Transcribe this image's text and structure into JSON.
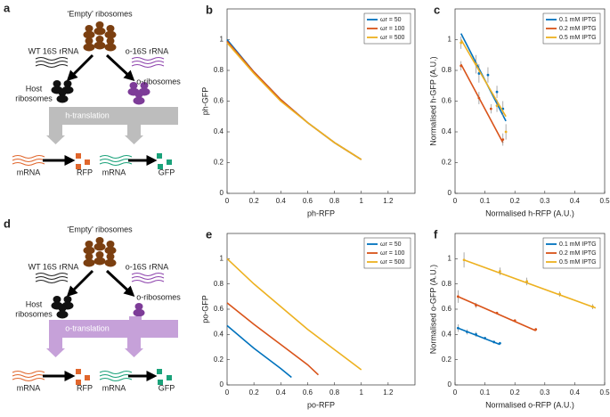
{
  "diagrams": [
    {
      "panel": "a",
      "title": "‘Empty’ ribosomes",
      "wt_label": "WT 16S rRNA",
      "o_label": "o-16S rRNA",
      "host_label": [
        "Host",
        "ribosomes"
      ],
      "oribo_label": "o-ribosomes",
      "process": "h-translation",
      "products": [
        "mRNA",
        "RFP",
        "mRNA",
        "GFP"
      ]
    },
    {
      "panel": "d",
      "title": "‘Empty’ ribosomes",
      "wt_label": "WT 16S rRNA",
      "o_label": "o-16S rRNA",
      "host_label": [
        "Host",
        "ribosomes"
      ],
      "oribo_label": "o-ribosomes",
      "process": "o-translation",
      "products": [
        "mRNA",
        "RFP",
        "mRNA",
        "GFP"
      ]
    }
  ],
  "chart_data": [
    {
      "type": "line",
      "panel": "b",
      "xlabel": "ph-RFP",
      "ylabel": "ph-GFP",
      "xlim": [
        0,
        1.4
      ],
      "ylim": [
        0,
        1.2
      ],
      "xticks": [
        0,
        0.2,
        0.4,
        0.6,
        0.8,
        1,
        1.2
      ],
      "yticks": [
        0,
        0.2,
        0.4,
        0.6,
        0.8,
        1
      ],
      "legend": "upper right",
      "series": [
        {
          "name": "ωr = 50",
          "color": "#0072bd",
          "x": [
            0,
            0.2,
            0.4,
            0.6,
            0.8,
            1
          ],
          "values": [
            1.0,
            0.79,
            0.61,
            0.46,
            0.33,
            0.22
          ]
        },
        {
          "name": "ωr = 100",
          "color": "#d95319",
          "x": [
            0,
            0.2,
            0.4,
            0.6,
            0.8,
            1
          ],
          "values": [
            0.99,
            0.79,
            0.61,
            0.46,
            0.33,
            0.22
          ]
        },
        {
          "name": "ωr = 500",
          "color": "#edb120",
          "x": [
            0,
            0.2,
            0.4,
            0.6,
            0.8,
            1
          ],
          "values": [
            0.98,
            0.78,
            0.6,
            0.46,
            0.33,
            0.22
          ]
        }
      ]
    },
    {
      "type": "scatter",
      "panel": "c",
      "xlabel": "Normalised h-RFP (A.U.)",
      "ylabel": "Normalised h-GFP (A.U.)",
      "xlim": [
        0,
        0.5
      ],
      "ylim": [
        0,
        1.2
      ],
      "xticks": [
        0,
        0.1,
        0.2,
        0.3,
        0.4,
        0.5
      ],
      "yticks": [
        0,
        0.2,
        0.4,
        0.6,
        0.8,
        1
      ],
      "legend": "upper right",
      "series": [
        {
          "name": "0.1 mM IPTG",
          "color": "#0072bd",
          "fit_x": [
            0.02,
            0.17
          ],
          "fit_y": [
            1.04,
            0.47
          ],
          "x": [
            0.08,
            0.11,
            0.14,
            0.16
          ],
          "values": [
            0.78,
            0.77,
            0.66,
            0.55
          ],
          "errors": [
            0.06,
            0.05,
            0.04,
            0.05
          ]
        },
        {
          "name": "0.2 mM IPTG",
          "color": "#d95319",
          "fit_x": [
            0.02,
            0.16
          ],
          "fit_y": [
            0.84,
            0.33
          ],
          "x": [
            0.02,
            0.08,
            0.12,
            0.16
          ],
          "values": [
            0.83,
            0.62,
            0.55,
            0.35
          ],
          "errors": [
            0.03,
            0.04,
            0.03,
            0.04
          ]
        },
        {
          "name": "0.5 mM IPTG",
          "color": "#edb120",
          "fit_x": [
            0.02,
            0.17
          ],
          "fit_y": [
            1.0,
            0.5
          ],
          "x": [
            0.02,
            0.07,
            0.14,
            0.17
          ],
          "values": [
            0.98,
            0.84,
            0.57,
            0.4
          ],
          "errors": [
            0.04,
            0.06,
            0.04,
            0.05
          ]
        }
      ]
    },
    {
      "type": "line",
      "panel": "e",
      "xlabel": "po-RFP",
      "ylabel": "po-GFP",
      "xlim": [
        0,
        1.4
      ],
      "ylim": [
        0,
        1.2
      ],
      "xticks": [
        0,
        0.2,
        0.4,
        0.6,
        0.8,
        1,
        1.2
      ],
      "yticks": [
        0,
        0.2,
        0.4,
        0.6,
        0.8,
        1
      ],
      "legend": "upper right",
      "series": [
        {
          "name": "ωr = 50",
          "color": "#0072bd",
          "x": [
            0,
            0.1,
            0.2,
            0.3,
            0.4,
            0.48
          ],
          "values": [
            0.47,
            0.38,
            0.29,
            0.21,
            0.13,
            0.06
          ]
        },
        {
          "name": "ωr = 100",
          "color": "#d95319",
          "x": [
            0,
            0.2,
            0.4,
            0.6,
            0.68
          ],
          "values": [
            0.65,
            0.48,
            0.32,
            0.16,
            0.08
          ]
        },
        {
          "name": "ωr = 500",
          "color": "#edb120",
          "x": [
            0,
            0.2,
            0.4,
            0.6,
            0.8,
            1
          ],
          "values": [
            1.0,
            0.8,
            0.62,
            0.44,
            0.28,
            0.12
          ]
        }
      ]
    },
    {
      "type": "scatter",
      "panel": "f",
      "xlabel": "Normalised o-RFP (A.U.)",
      "ylabel": "Normalised o-GFP (A.U.)",
      "xlim": [
        0,
        0.5
      ],
      "ylim": [
        0,
        1.2
      ],
      "xticks": [
        0,
        0.1,
        0.2,
        0.3,
        0.4,
        0.5
      ],
      "yticks": [
        0,
        0.2,
        0.4,
        0.6,
        0.8,
        1
      ],
      "legend": "upper right",
      "series": [
        {
          "name": "0.1 mM IPTG",
          "color": "#0072bd",
          "fit_x": [
            0.01,
            0.15
          ],
          "fit_y": [
            0.45,
            0.32
          ],
          "x": [
            0.01,
            0.04,
            0.07,
            0.1,
            0.13,
            0.15
          ],
          "values": [
            0.45,
            0.42,
            0.4,
            0.37,
            0.34,
            0.33
          ],
          "errors": [
            0.03,
            0.02,
            0.02,
            0.01,
            0.01,
            0.01
          ]
        },
        {
          "name": "0.2 mM IPTG",
          "color": "#d95319",
          "fit_x": [
            0.01,
            0.27
          ],
          "fit_y": [
            0.7,
            0.43
          ],
          "x": [
            0.01,
            0.07,
            0.14,
            0.2,
            0.27
          ],
          "values": [
            0.7,
            0.63,
            0.57,
            0.51,
            0.44
          ],
          "errors": [
            0.05,
            0.02,
            0.01,
            0.01,
            0.01
          ]
        },
        {
          "name": "0.5 mM IPTG",
          "color": "#edb120",
          "fit_x": [
            0.03,
            0.47
          ],
          "fit_y": [
            0.99,
            0.61
          ],
          "x": [
            0.03,
            0.15,
            0.24,
            0.35,
            0.46
          ],
          "values": [
            0.99,
            0.9,
            0.82,
            0.72,
            0.62
          ],
          "errors": [
            0.06,
            0.03,
            0.03,
            0.02,
            0.02
          ]
        }
      ]
    }
  ]
}
